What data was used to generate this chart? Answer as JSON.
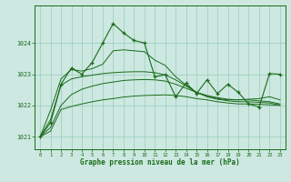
{
  "bg_color": "#cce8e0",
  "grid_color": "#99ccbb",
  "line_color": "#1a6b1a",
  "xlim": [
    -0.5,
    23.5
  ],
  "ylim": [
    1020.6,
    1025.2
  ],
  "yticks": [
    1021,
    1022,
    1023,
    1024
  ],
  "xticks": [
    0,
    1,
    2,
    3,
    4,
    5,
    6,
    7,
    8,
    9,
    10,
    11,
    12,
    13,
    14,
    15,
    16,
    17,
    18,
    19,
    20,
    21,
    22,
    23
  ],
  "xlabel": "Graphe pression niveau de la mer (hPa)",
  "smooth1": [
    1021.0,
    1021.18,
    1021.87,
    1021.97,
    1022.05,
    1022.12,
    1022.18,
    1022.22,
    1022.27,
    1022.3,
    1022.32,
    1022.33,
    1022.34,
    1022.32,
    1022.28,
    1022.22,
    1022.18,
    1022.12,
    1022.08,
    1022.05,
    1022.05,
    1022.04,
    1022.02,
    1022.0
  ],
  "smooth2": [
    1021.0,
    1021.3,
    1022.0,
    1022.35,
    1022.52,
    1022.62,
    1022.7,
    1022.75,
    1022.8,
    1022.82,
    1022.83,
    1022.82,
    1022.78,
    1022.68,
    1022.55,
    1022.42,
    1022.32,
    1022.25,
    1022.2,
    1022.18,
    1022.18,
    1022.15,
    1022.12,
    1022.05
  ],
  "smooth3": [
    1021.0,
    1021.55,
    1022.65,
    1022.85,
    1022.92,
    1022.97,
    1023.02,
    1023.05,
    1023.07,
    1023.08,
    1023.08,
    1023.05,
    1022.98,
    1022.82,
    1022.62,
    1022.42,
    1022.28,
    1022.2,
    1022.15,
    1022.12,
    1022.12,
    1022.1,
    1022.08,
    1022.02
  ],
  "smooth4": [
    1021.0,
    1021.85,
    1022.85,
    1023.15,
    1023.1,
    1023.18,
    1023.32,
    1023.75,
    1023.78,
    1023.75,
    1023.72,
    1023.45,
    1023.28,
    1022.92,
    1022.65,
    1022.42,
    1022.3,
    1022.22,
    1022.18,
    1022.18,
    1022.2,
    1022.22,
    1022.28,
    1022.18
  ],
  "main": [
    1021.0,
    1021.45,
    1022.68,
    1023.2,
    1023.0,
    1023.38,
    1024.0,
    1024.62,
    1024.32,
    1024.08,
    1024.0,
    1022.92,
    1022.98,
    1022.28,
    1022.72,
    1022.38,
    1022.82,
    1022.38,
    1022.68,
    1022.42,
    1022.05,
    1021.95,
    1023.02,
    1023.0
  ],
  "wiggly": [
    1021.0,
    1021.45,
    1022.68,
    1023.2,
    1023.0,
    1023.38,
    1024.0,
    1024.62,
    1024.32,
    1024.08,
    1024.0,
    1022.55,
    1022.92,
    1022.28,
    1022.72,
    1022.12,
    1022.82,
    1022.38,
    1022.72,
    1022.12,
    1021.98,
    1021.9,
    1023.05,
    1023.0
  ]
}
